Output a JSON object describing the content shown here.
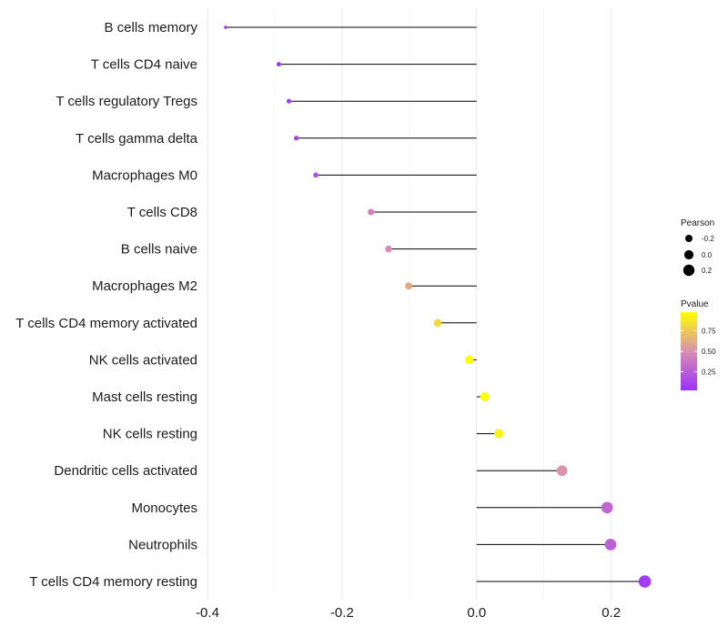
{
  "chart_data": {
    "type": "lollipop",
    "title": "",
    "xlabel": "",
    "ylabel": "",
    "xlim": [
      -0.4,
      0.26
    ],
    "xticks": [
      -0.4,
      -0.2,
      0.0,
      0.2
    ],
    "xtick_labels": [
      "-0.4",
      "-0.2",
      "0.0",
      "0.2"
    ],
    "categories": [
      "B cells memory",
      "T cells CD4 naive",
      "T cells regulatory  Tregs ",
      "T cells gamma delta",
      "Macrophages M0",
      "T cells CD8",
      "B cells naive",
      "Macrophages M2",
      "T cells CD4 memory activated",
      "NK cells activated",
      "Mast cells resting",
      "NK cells resting",
      "Dendritic cells activated",
      "Monocytes",
      "Neutrophils",
      "T cells CD4 memory resting"
    ],
    "pearson": [
      -0.373,
      -0.294,
      -0.279,
      -0.268,
      -0.239,
      -0.157,
      -0.131,
      -0.101,
      -0.058,
      -0.011,
      0.012,
      0.033,
      0.127,
      0.194,
      0.199,
      0.25
    ],
    "pvalue": [
      0.02,
      0.06,
      0.08,
      0.11,
      0.18,
      0.42,
      0.48,
      0.62,
      0.82,
      0.98,
      0.97,
      0.92,
      0.52,
      0.3,
      0.27,
      0.08
    ],
    "legend": {
      "size_title": "Pearson",
      "size_labels": [
        "-0.2",
        "0.0",
        "0.2"
      ],
      "size_values": [
        -0.2,
        0.0,
        0.2
      ],
      "color_title": "Pvalue",
      "color_labels": [
        "0.75",
        "0.50",
        "0.25"
      ],
      "color_values": [
        0.75,
        0.5,
        0.25
      ],
      "color_low": "#9b30ff",
      "color_high": "#ffff00",
      "position": "right"
    }
  }
}
